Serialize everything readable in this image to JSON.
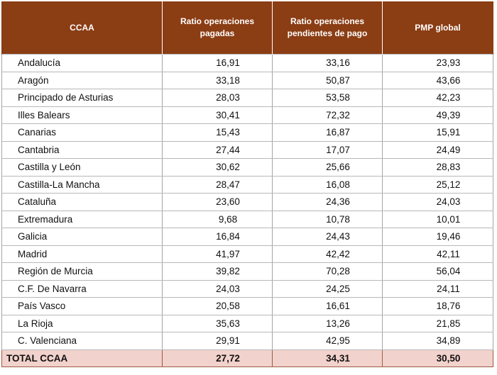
{
  "header": {
    "col1": "CCAA",
    "col2": "Ratio operaciones pagadas",
    "col3": "Ratio operaciones pendientes de pago",
    "col4": "PMP global"
  },
  "rows": [
    {
      "name": "Andalucía",
      "pagadas": "16,91",
      "pendientes": "33,16",
      "pmp": "23,93"
    },
    {
      "name": "Aragón",
      "pagadas": "33,18",
      "pendientes": "50,87",
      "pmp": "43,66"
    },
    {
      "name": "Principado de Asturias",
      "pagadas": "28,03",
      "pendientes": "53,58",
      "pmp": "42,23"
    },
    {
      "name": "Illes Balears",
      "pagadas": "30,41",
      "pendientes": "72,32",
      "pmp": "49,39"
    },
    {
      "name": "Canarias",
      "pagadas": "15,43",
      "pendientes": "16,87",
      "pmp": "15,91"
    },
    {
      "name": "Cantabria",
      "pagadas": "27,44",
      "pendientes": "17,07",
      "pmp": "24,49"
    },
    {
      "name": "Castilla y León",
      "pagadas": "30,62",
      "pendientes": "25,66",
      "pmp": "28,83"
    },
    {
      "name": "Castilla-La Mancha",
      "pagadas": "28,47",
      "pendientes": "16,08",
      "pmp": "25,12"
    },
    {
      "name": "Cataluña",
      "pagadas": "23,60",
      "pendientes": "24,36",
      "pmp": "24,03"
    },
    {
      "name": "Extremadura",
      "pagadas": "9,68",
      "pendientes": "10,78",
      "pmp": "10,01"
    },
    {
      "name": "Galicia",
      "pagadas": "16,84",
      "pendientes": "24,43",
      "pmp": "19,46"
    },
    {
      "name": "Madrid",
      "pagadas": "41,97",
      "pendientes": "42,42",
      "pmp": "42,11"
    },
    {
      "name": "Región de Murcia",
      "pagadas": "39,82",
      "pendientes": "70,28",
      "pmp": "56,04"
    },
    {
      "name": "C.F. De Navarra",
      "pagadas": "24,03",
      "pendientes": "24,25",
      "pmp": "24,11"
    },
    {
      "name": "País Vasco",
      "pagadas": "20,58",
      "pendientes": "16,61",
      "pmp": "18,76"
    },
    {
      "name": "La Rioja",
      "pagadas": "35,63",
      "pendientes": "13,26",
      "pmp": "21,85"
    },
    {
      "name": "C. Valenciana",
      "pagadas": "29,91",
      "pendientes": "42,95",
      "pmp": "34,89"
    }
  ],
  "total": {
    "name": "TOTAL CCAA",
    "pagadas": "27,72",
    "pendientes": "34,31",
    "pmp": "30,50"
  },
  "colors": {
    "header_bg": "#8b3d14",
    "total_bg": "#f2d2cc"
  }
}
